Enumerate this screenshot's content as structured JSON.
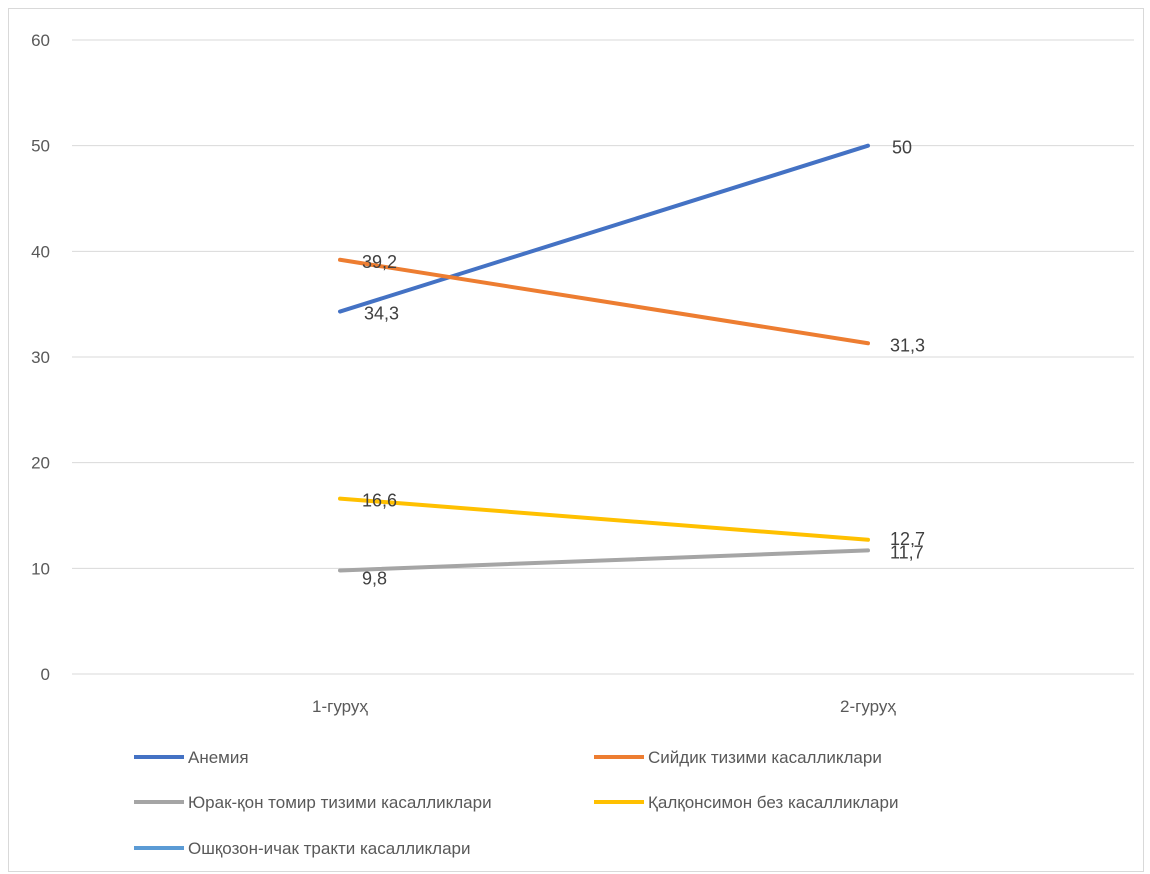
{
  "chart_data": {
    "type": "line",
    "title": "",
    "xlabel": "",
    "ylabel": "",
    "categories": [
      "1-гуруҳ",
      "2-гуруҳ"
    ],
    "ylim": [
      0,
      60
    ],
    "yticks": [
      "0",
      "10",
      "20",
      "30",
      "40",
      "50",
      "60"
    ],
    "grid": true,
    "legend_position": "bottom",
    "series": [
      {
        "name": "Анемия",
        "values": [
          34.3,
          50
        ],
        "labels": [
          "34,3",
          "50"
        ],
        "color": "#4472c4"
      },
      {
        "name": "Сийдик тизими касалликлари",
        "values": [
          39.2,
          31.3
        ],
        "labels": [
          "39,2",
          "31,3"
        ],
        "color": "#ed7d31"
      },
      {
        "name": "Юрак-қон томир тизими касалликлари",
        "values": [
          9.8,
          11.7
        ],
        "labels": [
          "9,8",
          "11,7"
        ],
        "color": "#a5a5a5"
      },
      {
        "name": "Қалқонсимон без касалликлари",
        "values": [
          16.6,
          12.7
        ],
        "labels": [
          "16,6",
          "12,7"
        ],
        "color": "#ffc000"
      },
      {
        "name": "Ошқозон-ичак тракти касалликлари",
        "values": [
          null,
          null
        ],
        "labels": [],
        "color": "#5b9bd5"
      }
    ]
  }
}
